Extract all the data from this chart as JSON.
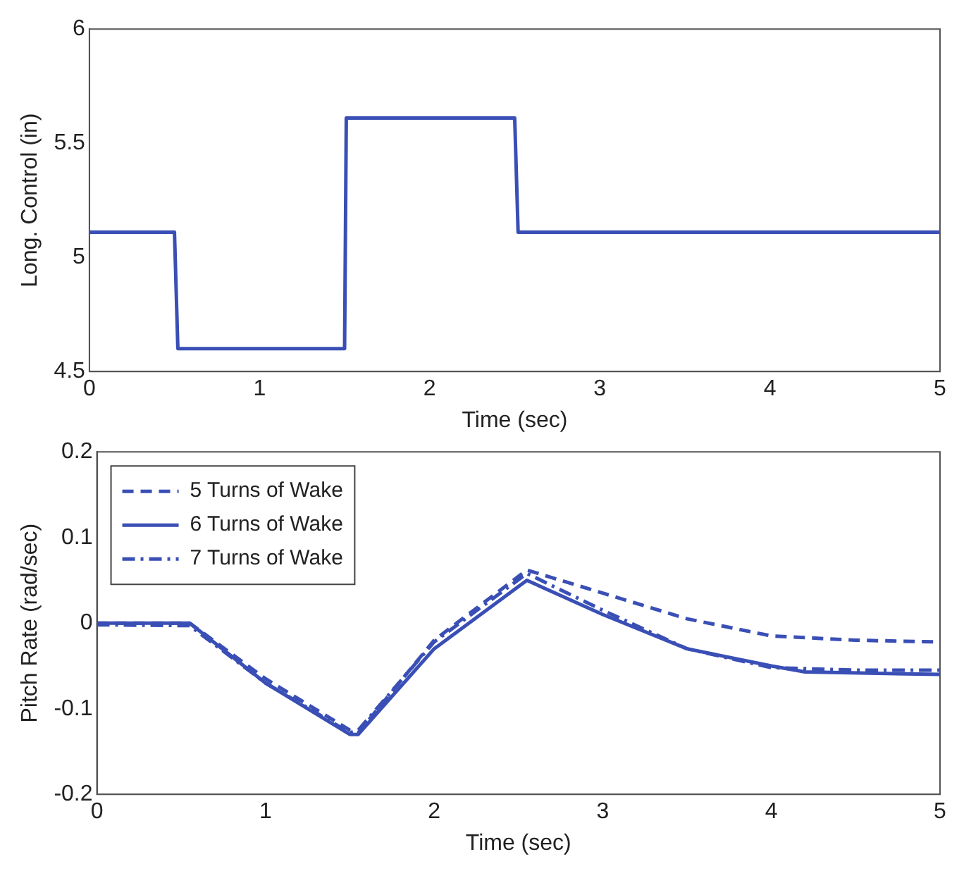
{
  "chart_data": [
    {
      "type": "line",
      "xlabel": "Time (sec)",
      "ylabel": "Long. Control (in)",
      "xlim": [
        0,
        5
      ],
      "ylim": [
        4.5,
        6
      ],
      "xticks": [
        0,
        1,
        2,
        3,
        4,
        5
      ],
      "yticks": [
        4.5,
        5,
        5.5,
        6
      ],
      "grid": false,
      "series": [
        {
          "color": "#3a4fb5",
          "line_style": "solid",
          "x": [
            0,
            0.5,
            0.52,
            1.5,
            1.51,
            2.5,
            2.52,
            5
          ],
          "values": [
            5.11,
            5.11,
            4.6,
            4.6,
            5.61,
            5.61,
            5.11,
            5.11
          ]
        }
      ]
    },
    {
      "type": "line",
      "xlabel": "Time (sec)",
      "ylabel": "Pitch Rate (rad/sec)",
      "xlim": [
        0,
        5
      ],
      "ylim": [
        -0.2,
        0.2
      ],
      "xticks": [
        0,
        1,
        2,
        3,
        4,
        5
      ],
      "yticks": [
        -0.2,
        -0.1,
        0,
        0.1,
        0.2
      ],
      "grid": false,
      "legend": "top left",
      "series": [
        {
          "name": "5 Turns of Wake",
          "color": "#3a4fb5",
          "line_style": "dashed",
          "x": [
            0,
            0.55,
            1,
            1.5,
            1.55,
            2,
            2.55,
            3,
            3.5,
            4,
            4.5,
            5
          ],
          "values": [
            0,
            0,
            -0.065,
            -0.125,
            -0.128,
            -0.02,
            0.062,
            0.035,
            0.005,
            -0.015,
            -0.02,
            -0.022
          ]
        },
        {
          "name": "6 Turns of Wake",
          "color": "#3a4fb5",
          "line_style": "solid",
          "x": [
            0,
            0.55,
            1,
            1.5,
            1.55,
            2,
            2.55,
            3,
            3.5,
            4,
            4.2,
            5
          ],
          "values": [
            0,
            0,
            -0.07,
            -0.13,
            -0.13,
            -0.03,
            0.05,
            0.01,
            -0.03,
            -0.05,
            -0.057,
            -0.06
          ]
        },
        {
          "name": "7 Turns of Wake",
          "color": "#3a4fb5",
          "line_style": "dashdot",
          "x": [
            0,
            0.55,
            1,
            1.5,
            1.55,
            2,
            2.55,
            3,
            3.5,
            4,
            4.5,
            5
          ],
          "values": [
            -0.002,
            -0.003,
            -0.07,
            -0.128,
            -0.125,
            -0.022,
            0.058,
            0.015,
            -0.03,
            -0.052,
            -0.055,
            -0.055
          ]
        }
      ]
    }
  ]
}
